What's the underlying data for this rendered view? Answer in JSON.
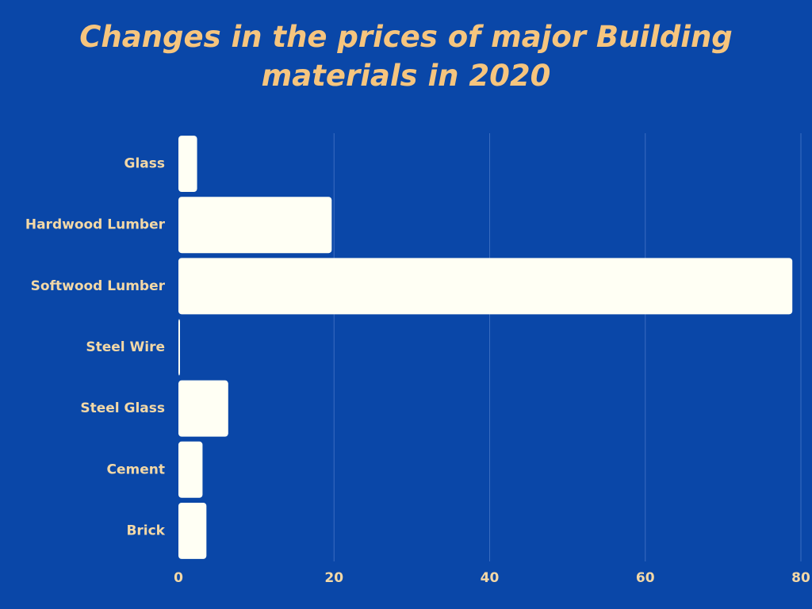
{
  "chart_data": {
    "type": "barh",
    "title": "Changes in the prices of major Building materials in 2020",
    "categories": [
      "Glass",
      "Hardwood Lumber",
      "Softwood Lumber",
      "Steel Wire",
      "Steel Glass",
      "Cement",
      "Brick"
    ],
    "values": [
      2.4,
      19.7,
      78.9,
      0.2,
      6.4,
      3.1,
      3.6
    ],
    "color": "#fffff4",
    "xlim": [
      0,
      80
    ],
    "xticks": [
      0,
      20,
      40,
      60,
      80
    ],
    "grid": true
  }
}
